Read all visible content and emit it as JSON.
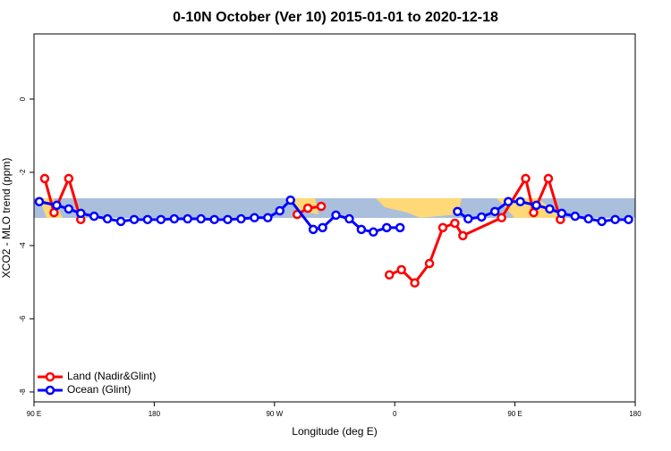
{
  "chart_data": {
    "type": "line",
    "title": "0-10N October (Ver 10)   2015-01-01 to 2020-12-18",
    "x_label": "Longitude (deg E)",
    "y_label": "XCO2 - MLO trend (ppm)",
    "xlim": [
      90,
      540
    ],
    "ylim": [
      -8.27,
      1.78
    ],
    "xticks": [
      {
        "value": 90,
        "label": "90 E"
      },
      180,
      {
        "value": 270,
        "label": "90 W"
      },
      {
        "value": 360,
        "label": "0"
      },
      {
        "value": 450,
        "label": "90 E"
      },
      {
        "value": 540,
        "label": "180"
      }
    ],
    "yticks": [
      0,
      -2,
      -4,
      -6,
      -8
    ],
    "legend": "bottom-left",
    "series": [
      {
        "name": "Land (Nadir&Glint)",
        "color": "#ff0000",
        "x": [
          98,
          105,
          116,
          125,
          null,
          287,
          295,
          305,
          null,
          356,
          365,
          375,
          386,
          396,
          405,
          411,
          440,
          458,
          464,
          475,
          484
        ],
        "values": [
          -2.17,
          -3.1,
          -2.17,
          -3.29,
          null,
          -3.15,
          -2.98,
          -2.93,
          null,
          -4.8,
          -4.66,
          -5.02,
          -4.49,
          -3.51,
          -3.39,
          -3.73,
          -3.24,
          -2.17,
          -3.1,
          -2.17,
          -3.29
        ]
      },
      {
        "name": "Ocean (Glint)",
        "color": "#0000ff",
        "x": [
          94,
          107,
          116,
          125,
          135,
          145,
          155,
          165,
          175,
          185,
          195,
          205,
          215,
          225,
          235,
          245,
          255,
          265,
          274,
          282,
          299,
          306,
          316,
          326,
          335,
          344,
          354,
          364,
          null,
          407,
          415,
          425,
          435,
          445,
          454,
          466,
          476,
          485,
          495,
          505,
          515,
          525,
          535
        ],
        "values": [
          -2.8,
          -2.9,
          -3.0,
          -3.12,
          -3.2,
          -3.27,
          -3.34,
          -3.29,
          -3.29,
          -3.29,
          -3.27,
          -3.27,
          -3.27,
          -3.29,
          -3.29,
          -3.27,
          -3.24,
          -3.24,
          -3.05,
          -2.76,
          -3.56,
          -3.51,
          -3.17,
          -3.27,
          -3.56,
          -3.63,
          -3.51,
          -3.51,
          null,
          -3.07,
          -3.27,
          -3.22,
          -3.07,
          -2.8,
          -2.8,
          -2.9,
          -3.0,
          -3.12,
          -3.2,
          -3.27,
          -3.34,
          -3.29,
          -3.29
        ]
      }
    ]
  }
}
